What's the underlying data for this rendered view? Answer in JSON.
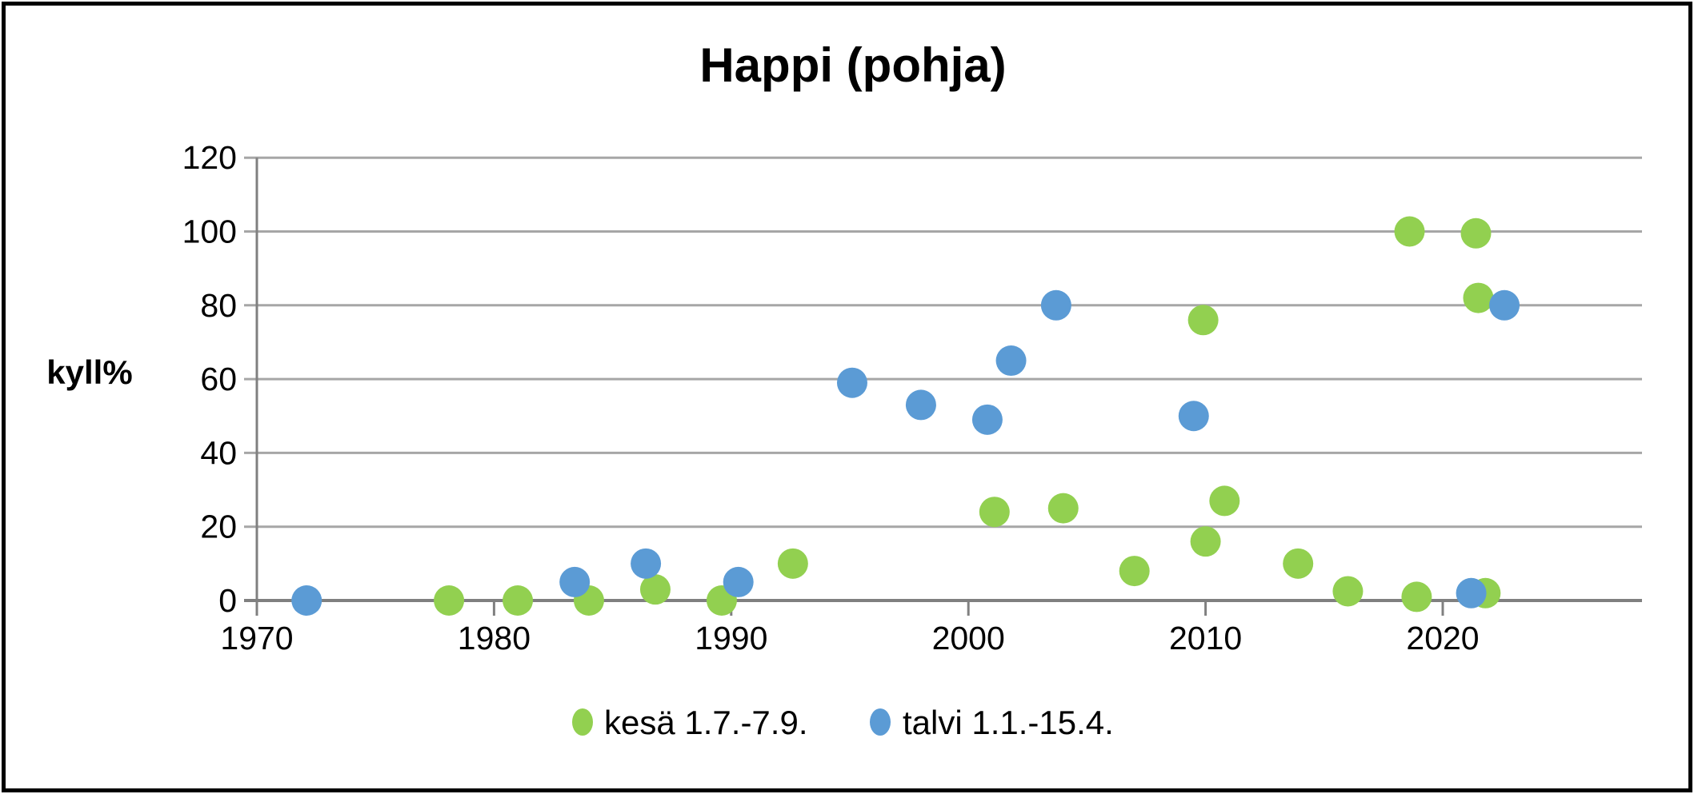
{
  "title": "Happi (pohja)",
  "y_axis_label": "kyll%",
  "legend": {
    "items": [
      {
        "label": "kesä 1.7.-7.9.",
        "color": "#92D050"
      },
      {
        "label": "talvi 1.1.-15.4.",
        "color": "#5B9BD5"
      }
    ]
  },
  "colors": {
    "kesa_marker": "#92D050",
    "talvi_marker": "#5B9BD5",
    "gridline": "#A6A6A6",
    "axis": "#808080",
    "text": "#000000",
    "frame": "#000000",
    "background": "#FFFFFF"
  },
  "chart_data": {
    "type": "scatter",
    "title": "Happi (pohja)",
    "xlabel": "",
    "ylabel": "kyll%",
    "xlim": [
      1970,
      2028.5
    ],
    "ylim": [
      0,
      120
    ],
    "x_ticks": [
      1970,
      1980,
      1990,
      2000,
      2010,
      2020
    ],
    "y_ticks": [
      0,
      20,
      40,
      60,
      80,
      100,
      120
    ],
    "grid": true,
    "legend_position": "bottom",
    "marker_radius_px": 19,
    "series": [
      {
        "name": "kesä 1.7.-7.9.",
        "color": "#92D050",
        "points": [
          [
            1978.1,
            0
          ],
          [
            1981.0,
            0
          ],
          [
            1984.0,
            0
          ],
          [
            1986.8,
            3
          ],
          [
            1989.6,
            0
          ],
          [
            1992.6,
            10
          ],
          [
            2001.1,
            24
          ],
          [
            2004.0,
            25
          ],
          [
            2007.0,
            8
          ],
          [
            2009.9,
            76
          ],
          [
            2010.0,
            16
          ],
          [
            2010.8,
            27
          ],
          [
            2013.9,
            10
          ],
          [
            2016.0,
            2.5
          ],
          [
            2018.6,
            100
          ],
          [
            2018.9,
            1
          ],
          [
            2021.4,
            99.5
          ],
          [
            2021.5,
            82
          ],
          [
            2021.8,
            2
          ]
        ]
      },
      {
        "name": "talvi 1.1.-15.4.",
        "color": "#5B9BD5",
        "points": [
          [
            1972.1,
            0
          ],
          [
            1983.4,
            5
          ],
          [
            1986.4,
            10
          ],
          [
            1990.3,
            5
          ],
          [
            1995.1,
            59
          ],
          [
            1998.0,
            53
          ],
          [
            2000.8,
            49
          ],
          [
            2001.8,
            65
          ],
          [
            2003.7,
            80
          ],
          [
            2009.5,
            50
          ],
          [
            2021.2,
            2
          ],
          [
            2022.6,
            80
          ]
        ]
      }
    ]
  }
}
